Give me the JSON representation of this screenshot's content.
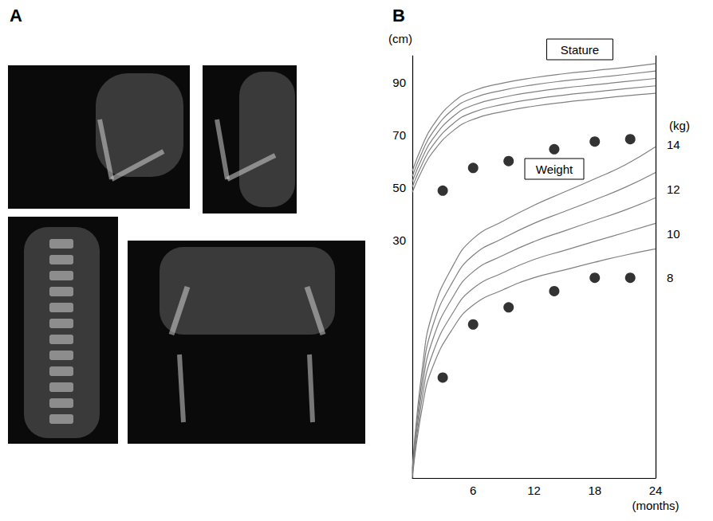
{
  "panel_labels": [
    "A",
    "B"
  ],
  "chart_data": {
    "type": "line",
    "x_label": "(months)",
    "y_label": "(cm)",
    "y2_label": "(kg)",
    "annotations": [
      "Stature",
      "Weight"
    ],
    "xlim": [
      0,
      24
    ],
    "xticks": [
      6,
      12,
      18,
      24
    ],
    "ylim": [
      -60,
      100
    ],
    "yticks": [
      30,
      50,
      70,
      90
    ],
    "y2lim": [
      -1,
      18
    ],
    "y2ticks": [
      8,
      10,
      12,
      14
    ],
    "grid": false,
    "series": [
      {
        "type": "line",
        "color": "#808080",
        "line_style": "solid",
        "x": [
          0,
          1,
          2,
          4,
          6,
          9,
          12,
          15,
          18,
          21,
          24
        ],
        "values": [
          56.3,
          66.1,
          73.4,
          82.3,
          86.7,
          89.7,
          91.7,
          93.2,
          94.4,
          95.6,
          97.0
        ]
      },
      {
        "type": "line",
        "color": "#808080",
        "line_style": "solid",
        "x": [
          0,
          1,
          2,
          4,
          6,
          9,
          12,
          15,
          18,
          21,
          24
        ],
        "values": [
          54.3,
          63.8,
          70.9,
          79.6,
          84.0,
          87.0,
          89.0,
          90.5,
          91.7,
          92.9,
          94.2
        ]
      },
      {
        "type": "line",
        "color": "#808080",
        "line_style": "solid",
        "x": [
          0,
          1,
          2,
          4,
          6,
          9,
          12,
          15,
          18,
          21,
          24
        ],
        "values": [
          52.3,
          61.5,
          68.4,
          76.9,
          81.3,
          84.3,
          86.3,
          87.8,
          89.0,
          90.2,
          91.4
        ]
      },
      {
        "type": "line",
        "color": "#808080",
        "line_style": "solid",
        "x": [
          0,
          1,
          2,
          4,
          6,
          9,
          12,
          15,
          18,
          21,
          24
        ],
        "values": [
          50.3,
          59.2,
          65.9,
          74.2,
          78.6,
          81.6,
          83.6,
          85.1,
          86.3,
          87.5,
          88.6
        ]
      },
      {
        "type": "line",
        "color": "#808080",
        "line_style": "solid",
        "x": [
          0,
          1,
          2,
          4,
          6,
          9,
          12,
          15,
          18,
          21,
          24
        ],
        "values": [
          48.3,
          56.9,
          63.4,
          71.5,
          75.9,
          78.9,
          80.9,
          82.4,
          83.6,
          84.8,
          85.8
        ]
      },
      {
        "type": "scatter",
        "color": "#000000",
        "marker": "circle",
        "x": [
          3,
          6,
          9.5,
          14,
          18,
          21.5
        ],
        "values": [
          48.9,
          57.5,
          60.1,
          64.6,
          67.5,
          68.4
        ]
      },
      {
        "type": "line",
        "color": "#808080",
        "line_style": "solid",
        "axis": "y2",
        "x": [
          0,
          1,
          2,
          4,
          6,
          9,
          12,
          15,
          18,
          21,
          24
        ],
        "values": [
          -0.58,
          3.98,
          6.43,
          8.54,
          9.77,
          10.57,
          11.27,
          11.87,
          12.46,
          13.09,
          13.9
        ]
      },
      {
        "type": "line",
        "color": "#808080",
        "line_style": "solid",
        "axis": "y2",
        "x": [
          0,
          1,
          2,
          4,
          6,
          9,
          12,
          15,
          18,
          21,
          24
        ],
        "values": [
          -0.69,
          3.54,
          5.82,
          7.84,
          9.02,
          9.8,
          10.46,
          10.99,
          11.52,
          12.08,
          12.75
        ]
      },
      {
        "type": "line",
        "color": "#808080",
        "line_style": "solid",
        "axis": "y2",
        "x": [
          0,
          1,
          2,
          4,
          6,
          9,
          12,
          15,
          18,
          21,
          24
        ],
        "values": [
          -0.79,
          3.11,
          5.21,
          7.14,
          8.28,
          9.03,
          9.64,
          10.12,
          10.59,
          11.06,
          11.61
        ]
      },
      {
        "type": "line",
        "color": "#808080",
        "line_style": "solid",
        "axis": "y2",
        "x": [
          0,
          1,
          2,
          4,
          6,
          9,
          12,
          15,
          18,
          21,
          24
        ],
        "values": [
          -0.9,
          2.67,
          4.59,
          6.43,
          7.53,
          8.25,
          8.83,
          9.24,
          9.65,
          10.05,
          10.46
        ]
      },
      {
        "type": "line",
        "color": "#808080",
        "line_style": "solid",
        "axis": "y2",
        "x": [
          0,
          1,
          2,
          4,
          6,
          9,
          12,
          15,
          18,
          21,
          24
        ],
        "values": [
          -1.0,
          2.23,
          3.98,
          5.73,
          6.78,
          7.48,
          8.01,
          8.36,
          8.71,
          9.03,
          9.31
        ]
      },
      {
        "type": "scatter",
        "color": "#000000",
        "marker": "circle",
        "axis": "y2",
        "x": [
          3,
          6,
          9.5,
          14,
          18,
          21.5
        ],
        "values": [
          3.52,
          5.91,
          6.68,
          7.41,
          8.01,
          8.01
        ]
      }
    ]
  }
}
